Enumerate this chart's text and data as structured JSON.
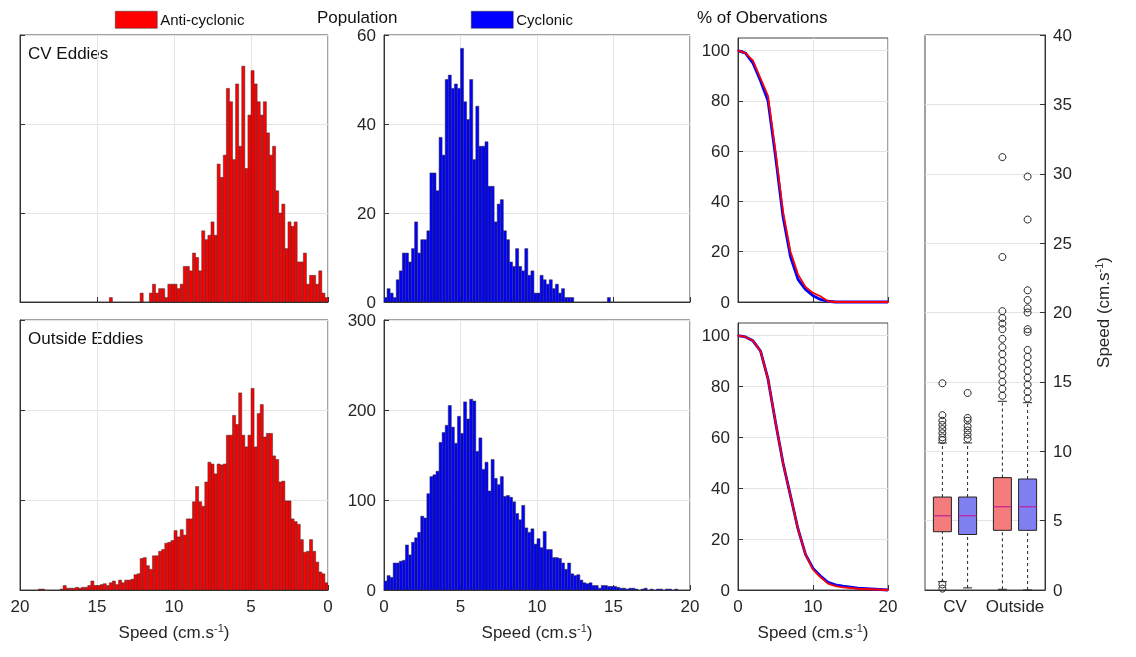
{
  "chart_data": [
    {
      "type": "histogram",
      "annotations": [
        "CV Eddies"
      ],
      "legend": "top",
      "grid": true,
      "tick_labels": false,
      "xlim": [
        20,
        0
      ],
      "xticks": [
        20,
        15,
        10,
        5,
        0
      ],
      "ylim": [
        0,
        60
      ],
      "yticks": [
        0,
        20,
        40,
        60
      ],
      "bins": [
        0,
        0.2,
        0.4,
        0.6,
        0.8,
        1,
        1.2,
        1.4,
        1.6,
        1.8,
        2,
        2.2,
        2.4,
        2.6,
        2.8,
        3,
        3.2,
        3.4,
        3.6,
        3.8,
        4,
        4.2,
        4.4,
        4.6,
        4.8,
        5,
        5.2,
        5.4,
        5.6,
        5.8,
        6,
        6.2,
        6.4,
        6.6,
        6.8,
        7,
        7.2,
        7.4,
        7.6,
        7.8,
        8,
        8.2,
        8.4,
        8.6,
        8.8,
        9,
        9.2,
        9.4,
        9.6,
        9.8,
        10,
        10.2,
        10.4,
        10.6,
        10.8,
        11,
        11.2,
        11.4,
        11.6,
        11.8,
        12,
        12.2,
        12.4,
        12.6,
        12.8,
        13,
        13.2,
        13.4,
        13.6,
        13.8,
        14,
        14.2
      ],
      "series": [
        {
          "name": "Anti-cyclonic",
          "color": "#ff0000",
          "values": [
            1,
            2,
            7,
            4,
            6,
            6,
            4,
            11,
            9,
            9,
            18,
            17,
            18,
            12,
            22,
            20,
            25,
            35,
            33,
            38,
            45,
            42,
            45,
            49,
            52,
            42,
            30,
            53,
            35,
            49,
            32,
            45,
            48,
            33,
            28,
            31,
            15,
            18,
            15,
            14,
            16,
            7,
            10,
            11,
            7,
            8,
            8,
            4,
            3,
            4,
            4,
            4,
            1,
            3,
            3,
            2,
            4,
            2,
            0,
            0,
            2,
            0,
            0,
            0,
            0,
            0,
            0,
            0,
            0,
            0,
            1
          ]
        }
      ]
    },
    {
      "type": "histogram",
      "title": "Population",
      "legend": "top",
      "grid": true,
      "tick_labels": "y",
      "xlim": [
        0,
        20
      ],
      "xticks": [
        0,
        5,
        10,
        15,
        20
      ],
      "ylim": [
        0,
        60
      ],
      "yticks": [
        0,
        20,
        40,
        60
      ],
      "bins": [
        0,
        0.2,
        0.4,
        0.6,
        0.8,
        1,
        1.2,
        1.4,
        1.6,
        1.8,
        2,
        2.2,
        2.4,
        2.6,
        2.8,
        3,
        3.2,
        3.4,
        3.6,
        3.8,
        4,
        4.2,
        4.4,
        4.6,
        4.8,
        5,
        5.2,
        5.4,
        5.6,
        5.8,
        6,
        6.2,
        6.4,
        6.6,
        6.8,
        7,
        7.2,
        7.4,
        7.6,
        7.8,
        8,
        8.2,
        8.4,
        8.6,
        8.8,
        9,
        9.2,
        9.4,
        9.6,
        9.8,
        10,
        10.2,
        10.4,
        10.6,
        10.8,
        11,
        11.2,
        11.4,
        11.6,
        11.8,
        12,
        12.2,
        12.4,
        12.6,
        12.8,
        13,
        13.2,
        13.4,
        13.6,
        13.8,
        14,
        14.2,
        14.4,
        14.6,
        14.8
      ],
      "series": [
        {
          "name": "Cyclonic",
          "color": "#0000ff",
          "values": [
            1,
            3,
            2,
            1,
            5,
            7,
            11,
            11,
            9,
            12,
            18,
            11,
            14,
            14,
            16,
            29,
            29,
            25,
            37,
            33,
            50,
            51,
            48,
            49,
            48,
            57,
            45,
            41,
            50,
            32,
            44,
            35,
            35,
            36,
            26,
            26,
            18,
            22,
            23,
            16,
            14,
            9,
            8,
            12,
            8,
            7,
            12,
            6,
            7,
            2,
            2,
            6,
            5,
            4,
            5,
            3,
            4,
            2,
            3,
            1,
            1,
            1,
            0,
            0,
            0,
            0,
            0,
            0,
            0,
            0,
            0,
            0,
            0,
            1
          ]
        }
      ]
    },
    {
      "type": "line",
      "title": "% of Obervations",
      "grid": true,
      "tick_labels": "y",
      "marker": "none",
      "xlim": [
        0,
        20
      ],
      "xticks": [
        0,
        10,
        20
      ],
      "ylim": [
        0,
        105
      ],
      "yticks": [
        0,
        20,
        40,
        60,
        80,
        100
      ],
      "series": [
        {
          "color": "#0000ff",
          "x": [
            0,
            1,
            2,
            3,
            4,
            5,
            6,
            7,
            8,
            9,
            10,
            11,
            12,
            13,
            20
          ],
          "values": [
            100,
            99,
            95,
            88,
            80,
            58,
            34,
            18,
            9,
            5,
            2.5,
            1,
            0.3,
            0,
            0
          ]
        },
        {
          "color": "#ff0000",
          "x": [
            0,
            1,
            2,
            3,
            4,
            5,
            6,
            7,
            8,
            9,
            10,
            11,
            12,
            13,
            20
          ],
          "values": [
            100,
            99,
            96,
            89,
            82,
            60,
            36,
            20,
            11,
            6,
            3.6,
            2.3,
            0.3,
            0,
            0
          ]
        }
      ]
    },
    {
      "type": "histogram",
      "annotations": [
        "Outside Eddies"
      ],
      "xlabel": "Speed (cm.s$^{-1}$)",
      "grid": true,
      "tick_labels": "x",
      "xlim": [
        20,
        0
      ],
      "xticks": [
        20,
        15,
        10,
        5,
        0
      ],
      "ylim": [
        0,
        300
      ],
      "yticks": [
        0,
        100,
        200,
        300
      ],
      "bins": [
        0,
        0.2,
        0.4,
        0.6,
        0.8,
        1,
        1.2,
        1.4,
        1.6,
        1.8,
        2,
        2.2,
        2.4,
        2.6,
        2.8,
        3,
        3.2,
        3.4,
        3.6,
        3.8,
        4,
        4.2,
        4.4,
        4.6,
        4.8,
        5,
        5.2,
        5.4,
        5.6,
        5.8,
        6,
        6.2,
        6.4,
        6.6,
        6.8,
        7,
        7.2,
        7.4,
        7.6,
        7.8,
        8,
        8.2,
        8.4,
        8.6,
        8.8,
        9,
        9.2,
        9.4,
        9.6,
        9.8,
        10,
        10.2,
        10.4,
        10.6,
        10.8,
        11,
        11.2,
        11.4,
        11.6,
        11.8,
        12,
        12.2,
        12.4,
        12.6,
        12.8,
        13,
        13.2,
        13.4,
        13.6,
        13.8,
        14,
        14.2,
        14.4,
        14.6,
        14.8,
        15,
        15.2,
        15.4,
        15.6,
        15.8,
        16,
        16.2,
        16.4,
        16.6,
        16.8,
        17,
        17.2,
        17.4,
        17.6,
        17.8,
        18,
        18.2,
        18.4,
        18.6,
        18.8
      ],
      "series": [
        {
          "color": "#ff0000",
          "values": [
            8,
            18,
            20,
            31,
            43,
            56,
            43,
            42,
            56,
            73,
            76,
            79,
            99,
            99,
            121,
            120,
            145,
            149,
            174,
            174,
            170,
            206,
            196,
            159,
            224,
            172,
            159,
            172,
            219,
            184,
            194,
            172,
            172,
            140,
            139,
            140,
            129,
            140,
            142,
            120,
            93,
            98,
            115,
            98,
            79,
            79,
            61,
            67,
            59,
            66,
            55,
            53,
            52,
            45,
            43,
            38,
            38,
            23,
            27,
            36,
            35,
            18,
            17,
            12,
            11,
            11,
            8,
            11,
            6,
            10,
            8,
            5,
            7,
            6,
            5,
            5,
            10,
            5,
            3,
            3,
            2,
            3,
            2,
            2,
            2,
            5,
            1,
            0,
            0,
            0,
            0,
            0,
            1,
            1
          ]
        }
      ]
    },
    {
      "type": "histogram",
      "xlabel": "Speed (cm.s$^{-1}$)",
      "grid": true,
      "xlim": [
        0,
        20
      ],
      "xticks": [
        0,
        5,
        10,
        15,
        20
      ],
      "ylim": [
        0,
        300
      ],
      "yticks": [
        0,
        100,
        200,
        300
      ],
      "bins": [
        0,
        0.2,
        0.4,
        0.6,
        0.8,
        1,
        1.2,
        1.4,
        1.6,
        1.8,
        2,
        2.2,
        2.4,
        2.6,
        2.8,
        3,
        3.2,
        3.4,
        3.6,
        3.8,
        4,
        4.2,
        4.4,
        4.6,
        4.8,
        5,
        5.2,
        5.4,
        5.6,
        5.8,
        6,
        6.2,
        6.4,
        6.6,
        6.8,
        7,
        7.2,
        7.4,
        7.6,
        7.8,
        8,
        8.2,
        8.4,
        8.6,
        8.8,
        9,
        9.2,
        9.4,
        9.6,
        9.8,
        10,
        10.2,
        10.4,
        10.6,
        10.8,
        11,
        11.2,
        11.4,
        11.6,
        11.8,
        12,
        12.2,
        12.4,
        12.6,
        12.8,
        13,
        13.2,
        13.4,
        13.6,
        13.8,
        14,
        14.2,
        14.4,
        14.6,
        14.8,
        15,
        15.2,
        15.4,
        15.6,
        15.8,
        16,
        16.2,
        16.4,
        16.6,
        16.8,
        17,
        17.2,
        17.4,
        17.6,
        17.8,
        18,
        18.2,
        18.4,
        18.6,
        18.8,
        19,
        19.2
      ],
      "series": [
        {
          "color": "#0000ff",
          "values": [
            10,
            16,
            14,
            30,
            30,
            32,
            33,
            50,
            39,
            53,
            58,
            64,
            82,
            80,
            107,
            126,
            128,
            132,
            164,
            175,
            183,
            205,
            181,
            163,
            193,
            174,
            209,
            190,
            212,
            210,
            154,
            169,
            134,
            142,
            110,
            145,
            124,
            117,
            126,
            104,
            105,
            103,
            98,
            85,
            78,
            94,
            69,
            64,
            68,
            51,
            57,
            47,
            65,
            45,
            45,
            36,
            36,
            35,
            30,
            23,
            30,
            18,
            16,
            17,
            11,
            8,
            7,
            8,
            5,
            5,
            2,
            5,
            5,
            4,
            4,
            4,
            3,
            2,
            2,
            1,
            2,
            2,
            1,
            0,
            1,
            2,
            0,
            1,
            0,
            1,
            1,
            0,
            1,
            1,
            0,
            1
          ]
        }
      ]
    },
    {
      "type": "line",
      "xlabel": "Speed (cm.s$^{-1}$)",
      "grid": true,
      "marker": "none",
      "xlim": [
        0,
        20
      ],
      "xticks": [
        0,
        10,
        20
      ],
      "ylim": [
        0,
        105
      ],
      "yticks": [
        0,
        20,
        40,
        60,
        80,
        100
      ],
      "series": [
        {
          "color": "#0000ff",
          "x": [
            0,
            1,
            2,
            3,
            4,
            5,
            6,
            7,
            8,
            9,
            10,
            11,
            12,
            13,
            14,
            16,
            20
          ],
          "values": [
            100,
            99.5,
            98,
            94,
            83,
            66,
            50,
            37,
            24,
            14,
            8.5,
            5.5,
            3,
            2,
            1.5,
            0.7,
            0
          ]
        },
        {
          "color": "#ff0000",
          "x": [
            0,
            1,
            2,
            3,
            4,
            5,
            6,
            7,
            8,
            9,
            10,
            11,
            12,
            13,
            14,
            16,
            20
          ],
          "values": [
            100,
            99.5,
            98,
            94,
            83,
            66,
            50,
            37,
            24,
            14,
            8,
            5,
            2.5,
            1.5,
            1,
            0.5,
            0
          ]
        }
      ]
    },
    {
      "type": "box",
      "ylabel": "Speed (cm.s$^{-1}$)",
      "grid": "y",
      "categories": [
        "CV",
        "Outside"
      ],
      "ylim": [
        0,
        40
      ],
      "yticks": [
        0,
        5,
        10,
        15,
        20,
        25,
        30,
        35,
        40
      ],
      "series": [
        {
          "color": "#f47c7c",
          "boxes": [
            {
              "low": 0.6,
              "q1": 4.2,
              "median": 5.35,
              "q3": 6.7,
              "high": 10.6,
              "outliers": [
                0.1,
                0.4,
                10.8,
                11.0,
                11.3,
                11.6,
                11.9,
                12.2,
                12.6,
                14.9
              ]
            },
            {
              "low": 0.05,
              "q1": 4.3,
              "median": 6.0,
              "q3": 8.1,
              "high": 13.6,
              "outliers": [
                14.0,
                14.5,
                15.0,
                15.5,
                16.0,
                16.5,
                17.0,
                17.5,
                18.1,
                18.8,
                19.2,
                19.6,
                20.1,
                24.0,
                31.2
              ]
            }
          ]
        },
        {
          "color": "#7f7ff2",
          "boxes": [
            {
              "low": 0.15,
              "q1": 4.0,
              "median": 5.35,
              "q3": 6.7,
              "high": 10.6,
              "outliers": [
                10.9,
                11.2,
                11.5,
                11.8,
                12.2,
                12.4,
                14.2
              ]
            },
            {
              "low": 0,
              "q1": 4.3,
              "median": 6.0,
              "q3": 8.0,
              "high": 13.5,
              "outliers": [
                13.8,
                14.3,
                14.8,
                15.3,
                15.8,
                16.3,
                16.8,
                17.3,
                18.6,
                18.8,
                20.0,
                20.3,
                20.9,
                21.6,
                26.7,
                29.8
              ]
            }
          ]
        }
      ]
    }
  ]
}
